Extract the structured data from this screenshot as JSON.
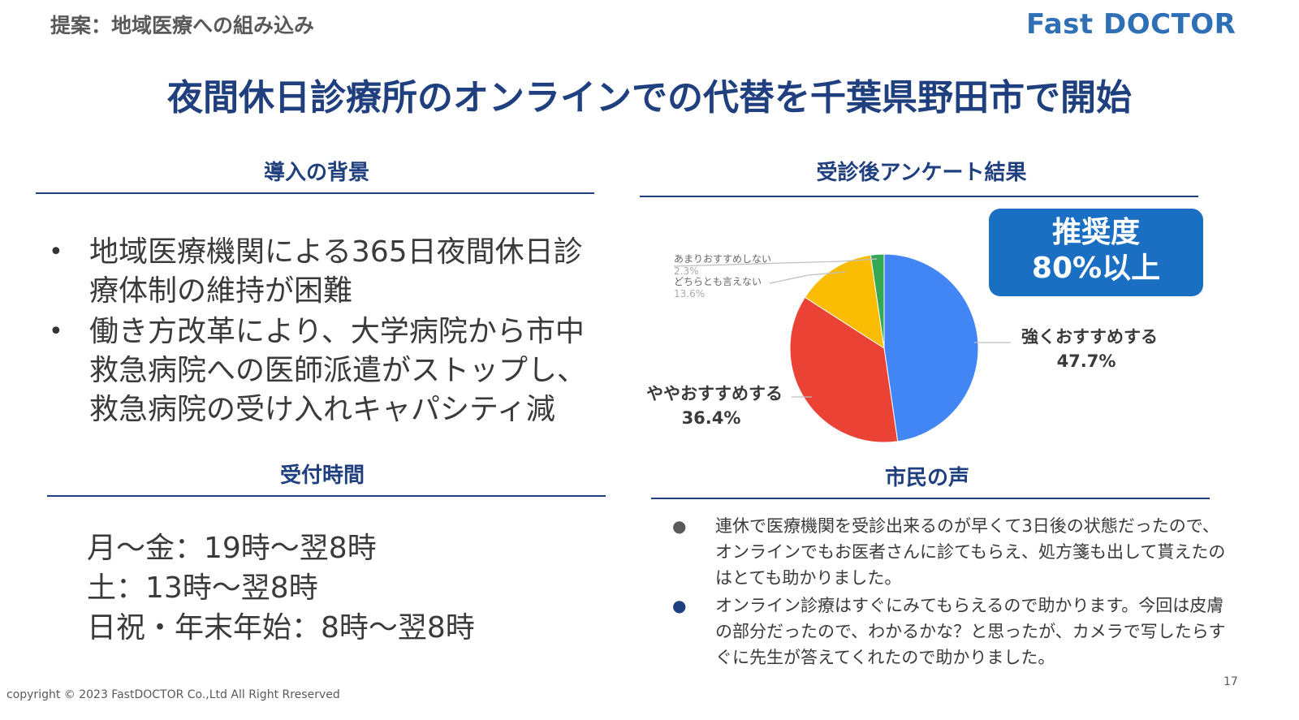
{
  "header": {
    "breadcrumb": "提案：地域医療への組み込み",
    "logo": "Fast DOCTOR",
    "title": "夜間休日診療所のオンラインでの代替を千葉県野田市で開始"
  },
  "background": {
    "heading": "導入の背景",
    "bullets": [
      "地域医療機関による365日夜間休日診療体制の維持が困難",
      "働き方改革により、大学病院から市中救急病院への医師派遣がストップし、救急病院の受け入れキャパシティ減"
    ]
  },
  "hours": {
    "heading": "受付時間",
    "lines": [
      "月～金：19時～翌8時",
      "土：13時～翌8時",
      "日祝・年末年始：8時～翌8時"
    ]
  },
  "survey": {
    "heading": "受診後アンケート結果",
    "badge_line1": "推奨度",
    "badge_line2": "80%以上"
  },
  "chart_data": {
    "type": "pie",
    "slices": [
      {
        "label": "強くおすすめする",
        "value": 47.7,
        "pct_label": "47.7%",
        "color": "#4285f4"
      },
      {
        "label": "ややおすすめする",
        "value": 36.4,
        "pct_label": "36.4%",
        "color": "#ea4335"
      },
      {
        "label": "どちらとも言えない",
        "value": 13.6,
        "pct_label": "13.6%",
        "color": "#fbbc04"
      },
      {
        "label": "あまりおすすめしない",
        "value": 2.3,
        "pct_label": "2.3%",
        "color": "#34a853"
      }
    ]
  },
  "voices": {
    "heading": "市民の声",
    "bullets": [
      "連休で医療機関を受診出来るのが早くて3日後の状態だったので、オンラインでもお医者さんに診てもらえ、処方箋も出して貰えたのはとても助かりました。",
      "オンライン診療はすぐにみてもらえるので助かります。今回は皮膚の部分だったので、わかるかな？と思ったが、カメラで写したらすぐに先生が答えてくれたので助かりました。"
    ],
    "dot_colors": [
      "#595959",
      "#1f3f7f"
    ]
  },
  "footer": {
    "copyright": "copyright © 2023 FastDOCTOR Co.,Ltd All Right Rreserved",
    "page_number": "17"
  }
}
